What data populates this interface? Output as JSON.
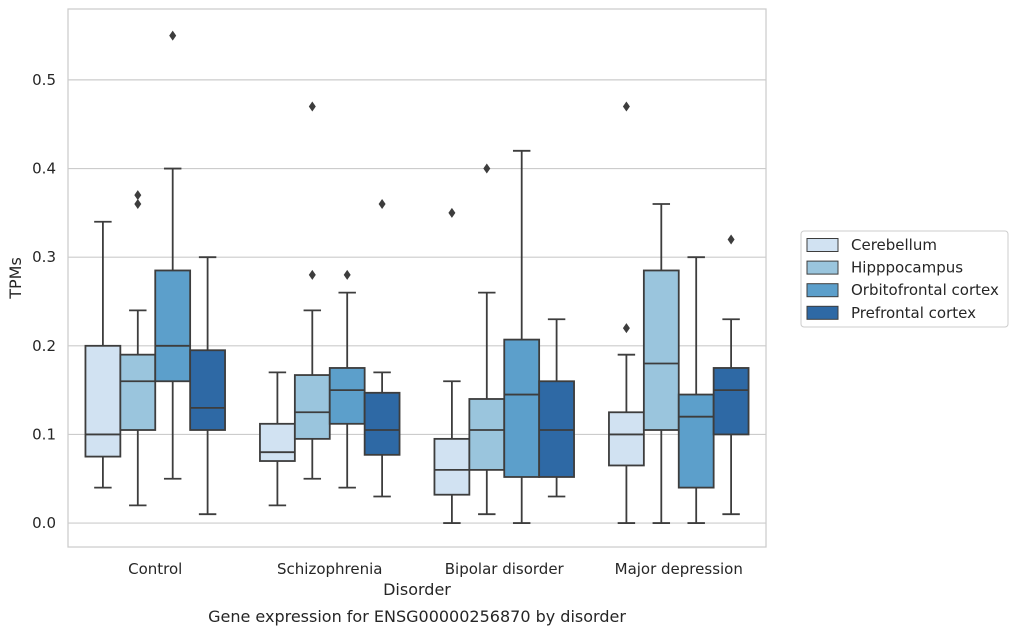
{
  "chart_data": {
    "type": "boxplot",
    "caption": "Gene expression for ENSG00000256870 by disorder",
    "xlabel": "Disorder",
    "ylabel": "TPMs",
    "ylim": [
      -0.027,
      0.58
    ],
    "yticks": [
      "0.0",
      "0.1",
      "0.2",
      "0.3",
      "0.4",
      "0.5"
    ],
    "grid": true,
    "legend_position": "right",
    "categories": [
      "Control",
      "Schizophrenia",
      "Bipolar disorder",
      "Major depression"
    ],
    "series": [
      {
        "name": "Cerebellum",
        "color": "#d1e2f2",
        "boxes": [
          {
            "whislo": 0.04,
            "q1": 0.075,
            "med": 0.1,
            "q3": 0.2,
            "whishi": 0.34,
            "fliers": []
          },
          {
            "whislo": 0.02,
            "q1": 0.07,
            "med": 0.08,
            "q3": 0.112,
            "whishi": 0.17,
            "fliers": []
          },
          {
            "whislo": 0.0,
            "q1": 0.032,
            "med": 0.06,
            "q3": 0.095,
            "whishi": 0.16,
            "fliers": [
              0.35
            ]
          },
          {
            "whislo": 0.0,
            "q1": 0.065,
            "med": 0.1,
            "q3": 0.125,
            "whishi": 0.19,
            "fliers": [
              0.22,
              0.47
            ]
          }
        ]
      },
      {
        "name": "Hipppocampus",
        "color": "#9ac5dd",
        "boxes": [
          {
            "whislo": 0.02,
            "q1": 0.105,
            "med": 0.16,
            "q3": 0.19,
            "whishi": 0.24,
            "fliers": [
              0.36,
              0.37
            ]
          },
          {
            "whislo": 0.05,
            "q1": 0.095,
            "med": 0.125,
            "q3": 0.167,
            "whishi": 0.24,
            "fliers": [
              0.28,
              0.47
            ]
          },
          {
            "whislo": 0.01,
            "q1": 0.06,
            "med": 0.105,
            "q3": 0.14,
            "whishi": 0.26,
            "fliers": [
              0.4
            ]
          },
          {
            "whislo": 0.0,
            "q1": 0.105,
            "med": 0.18,
            "q3": 0.285,
            "whishi": 0.36,
            "fliers": []
          }
        ]
      },
      {
        "name": "Orbitofrontal cortex",
        "color": "#5c9fcb",
        "boxes": [
          {
            "whislo": 0.05,
            "q1": 0.16,
            "med": 0.2,
            "q3": 0.285,
            "whishi": 0.4,
            "fliers": [
              0.55
            ]
          },
          {
            "whislo": 0.04,
            "q1": 0.112,
            "med": 0.15,
            "q3": 0.175,
            "whishi": 0.26,
            "fliers": [
              0.28
            ]
          },
          {
            "whislo": 0.0,
            "q1": 0.052,
            "med": 0.145,
            "q3": 0.207,
            "whishi": 0.42,
            "fliers": []
          },
          {
            "whislo": 0.0,
            "q1": 0.04,
            "med": 0.12,
            "q3": 0.145,
            "whishi": 0.3,
            "fliers": []
          }
        ]
      },
      {
        "name": "Prefrontal cortex",
        "color": "#2e69a5",
        "boxes": [
          {
            "whislo": 0.01,
            "q1": 0.105,
            "med": 0.13,
            "q3": 0.195,
            "whishi": 0.3,
            "fliers": []
          },
          {
            "whislo": 0.03,
            "q1": 0.077,
            "med": 0.105,
            "q3": 0.147,
            "whishi": 0.17,
            "fliers": [
              0.36
            ]
          },
          {
            "whislo": 0.03,
            "q1": 0.052,
            "med": 0.105,
            "q3": 0.16,
            "whishi": 0.23,
            "fliers": []
          },
          {
            "whislo": 0.01,
            "q1": 0.1,
            "med": 0.15,
            "q3": 0.175,
            "whishi": 0.23,
            "fliers": [
              0.32
            ]
          }
        ]
      }
    ]
  }
}
